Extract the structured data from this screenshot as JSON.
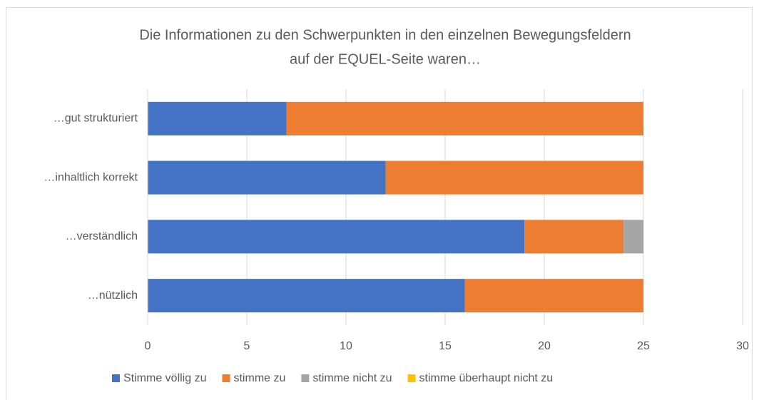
{
  "chart_data": {
    "type": "stacked_bar_horizontal",
    "title": [
      "Die Informationen zu den Schwerpunkten in den einzelnen Bewegungsfeldern",
      "auf der EQUEL-Seite waren…"
    ],
    "categories": [
      "…gut strukturiert",
      "…inhaltlich korrekt",
      "…verständlich",
      "…nützlich"
    ],
    "series": [
      {
        "name": "Stimme völlig zu",
        "color": "#4472c4",
        "values": [
          7,
          12,
          19,
          16
        ]
      },
      {
        "name": "stimme zu",
        "color": "#ed7d31",
        "values": [
          18,
          13,
          5,
          9
        ]
      },
      {
        "name": "stimme nicht zu",
        "color": "#a5a5a5",
        "values": [
          0,
          0,
          1,
          0
        ]
      },
      {
        "name": "stimme überhaupt nicht zu",
        "color": "#ffc000",
        "values": [
          0,
          0,
          0,
          0
        ]
      }
    ],
    "xlim": [
      0,
      30
    ],
    "xticks": [
      0,
      5,
      10,
      15,
      20,
      25,
      30
    ],
    "grid": true,
    "legend": "bottom"
  }
}
